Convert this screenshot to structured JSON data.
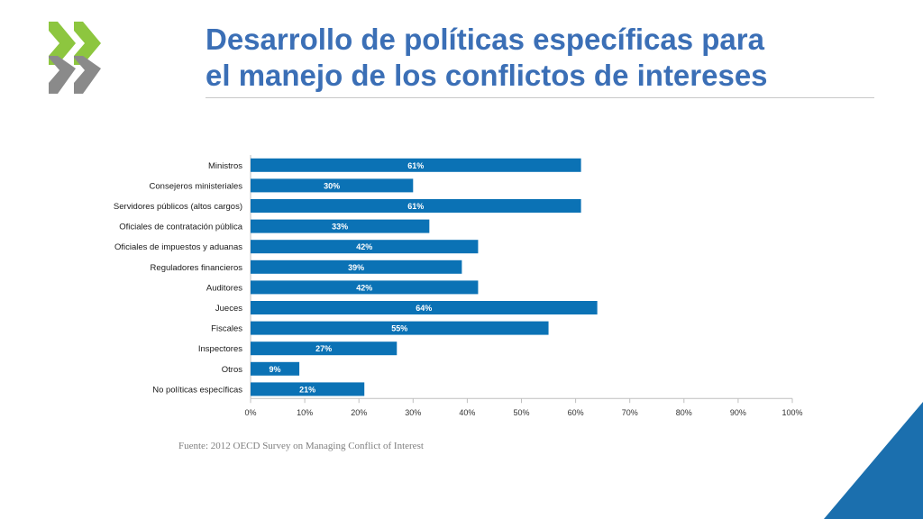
{
  "title_lines": [
    "Desarrollo de políticas específicas para",
    "el manejo de los conflictos de intereses"
  ],
  "source": "Fuente: 2012 OECD Survey on Managing Conflict of Interest",
  "colors": {
    "bar": "#0b72b5",
    "title": "#3b6fb6",
    "logo_green": "#8dc63f",
    "logo_gray": "#8a8a8a",
    "corner": "#1b6fae"
  },
  "chart_data": {
    "type": "bar",
    "orientation": "horizontal",
    "categories": [
      "Ministros",
      "Consejeros ministeriales",
      "Servidores públicos (altos cargos)",
      "Oficiales de contratación pública",
      "Oficiales de impuestos y aduanas",
      "Reguladores financieros",
      "Auditores",
      "Jueces",
      "Fiscales",
      "Inspectores",
      "Otros",
      "No políticas específicas"
    ],
    "values": [
      61,
      30,
      61,
      33,
      42,
      39,
      42,
      64,
      55,
      27,
      9,
      21
    ],
    "value_labels": [
      "61%",
      "30%",
      "61%",
      "33%",
      "42%",
      "39%",
      "42%",
      "64%",
      "55%",
      "27%",
      "9%",
      "21%"
    ],
    "xlim": [
      0,
      100
    ],
    "xticks": [
      0,
      10,
      20,
      30,
      40,
      50,
      60,
      70,
      80,
      90,
      100
    ],
    "xtick_labels": [
      "0%",
      "10%",
      "20%",
      "30%",
      "40%",
      "50%",
      "60%",
      "70%",
      "80%",
      "90%",
      "100%"
    ],
    "grid": false,
    "legend": "none",
    "title": "",
    "xlabel": "",
    "ylabel": ""
  }
}
